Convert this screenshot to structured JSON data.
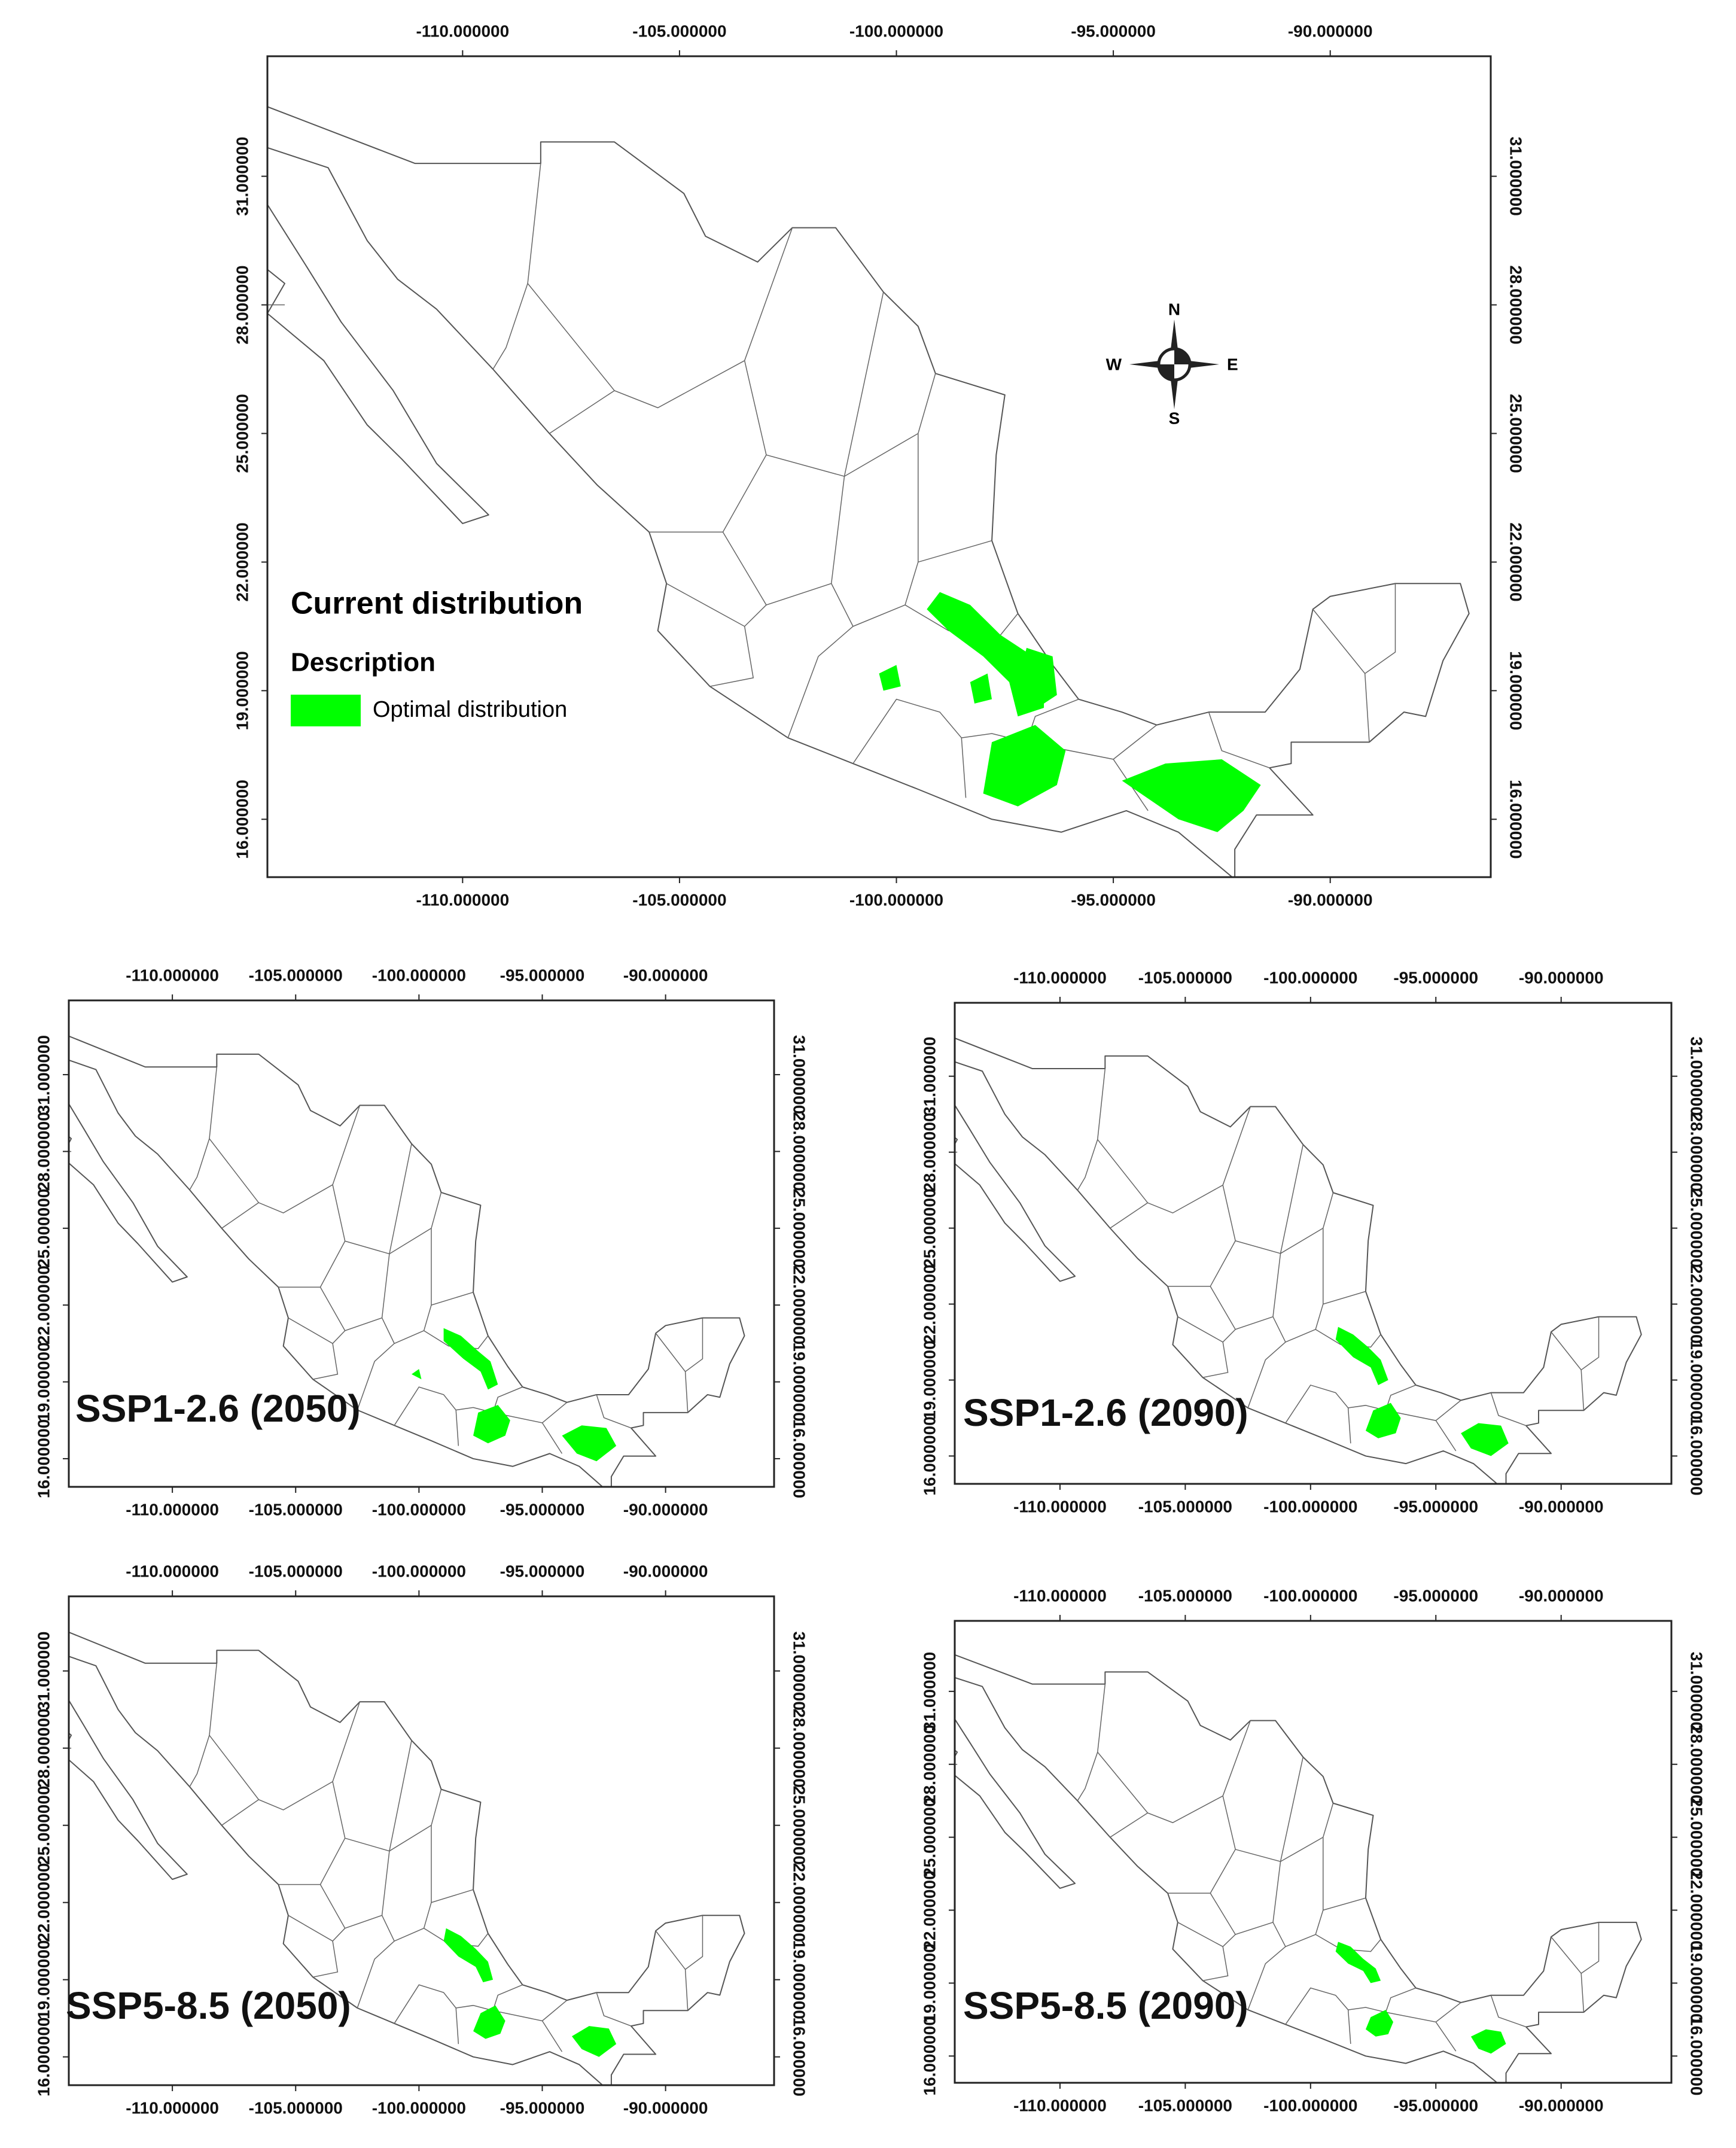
{
  "maps": [
    {
      "title": "Current distribution",
      "legend": {
        "title": "Description",
        "items": [
          {
            "label": "Optimal distribution",
            "color": "#00ff00"
          }
        ]
      },
      "compass": {
        "north": "N",
        "east": "E",
        "south": "S",
        "west": "W"
      },
      "xlim": [
        -114.5,
        -86.3
      ],
      "ylim": [
        14.65,
        33.8
      ],
      "xticks": [
        {
          "value": -110,
          "label": "-110.000000"
        },
        {
          "value": -105,
          "label": "-105.000000"
        },
        {
          "value": -100,
          "label": "-100.000000"
        },
        {
          "value": -95,
          "label": "-95.000000"
        },
        {
          "value": -90,
          "label": "-90.000000"
        }
      ],
      "yticks": [
        {
          "value": 16,
          "label": "16.000000"
        },
        {
          "value": 19,
          "label": "19.000000"
        },
        {
          "value": 22,
          "label": "22.000000"
        },
        {
          "value": 25,
          "label": "25.000000"
        },
        {
          "value": 28,
          "label": "28.000000"
        },
        {
          "value": 31,
          "label": "31.000000"
        }
      ]
    },
    {
      "title": "SSP1-2.6 (2050)",
      "xlim": [
        -114.2,
        -85.6
      ],
      "ylim": [
        14.9,
        33.9
      ],
      "xticks": [
        {
          "value": -110,
          "label": "-110.000000"
        },
        {
          "value": -105,
          "label": "-105.000000"
        },
        {
          "value": -100,
          "label": "-100.000000"
        },
        {
          "value": -95,
          "label": "-95.000000"
        },
        {
          "value": -90,
          "label": "-90.000000"
        }
      ],
      "yticks": [
        {
          "value": 16,
          "label": "16.000000"
        },
        {
          "value": 19,
          "label": "19.000000"
        },
        {
          "value": 22,
          "label": "22.000000"
        },
        {
          "value": 25,
          "label": "25.000000"
        },
        {
          "value": 28,
          "label": "28.000000"
        },
        {
          "value": 31,
          "label": "31.000000"
        }
      ]
    },
    {
      "title": "SSP1-2.6 (2090)",
      "xlim": [
        -114.2,
        -85.6
      ],
      "ylim": [
        14.9,
        33.9
      ],
      "xticks": [
        {
          "value": -110,
          "label": "-110.000000"
        },
        {
          "value": -105,
          "label": "-105.000000"
        },
        {
          "value": -100,
          "label": "-100.000000"
        },
        {
          "value": -95,
          "label": "-95.000000"
        },
        {
          "value": -90,
          "label": "-90.000000"
        }
      ],
      "yticks": [
        {
          "value": 16,
          "label": "16.000000"
        },
        {
          "value": 19,
          "label": "19.000000"
        },
        {
          "value": 22,
          "label": "22.000000"
        },
        {
          "value": 25,
          "label": "25.000000"
        },
        {
          "value": 28,
          "label": "28.000000"
        },
        {
          "value": 31,
          "label": "31.000000"
        }
      ]
    },
    {
      "title": "SSP5-8.5 (2050)",
      "xlim": [
        -114.2,
        -85.6
      ],
      "ylim": [
        14.9,
        33.9
      ],
      "xticks": [
        {
          "value": -110,
          "label": "-110.000000"
        },
        {
          "value": -105,
          "label": "-105.000000"
        },
        {
          "value": -100,
          "label": "-100.000000"
        },
        {
          "value": -95,
          "label": "-95.000000"
        },
        {
          "value": -90,
          "label": "-90.000000"
        }
      ],
      "yticks": [
        {
          "value": 16,
          "label": "16.000000"
        },
        {
          "value": 19,
          "label": "19.000000"
        },
        {
          "value": 22,
          "label": "22.000000"
        },
        {
          "value": 25,
          "label": "25.000000"
        },
        {
          "value": 28,
          "label": "28.000000"
        },
        {
          "value": 31,
          "label": "31.000000"
        }
      ]
    },
    {
      "title": "SSP5-8.5 (2090)",
      "xlim": [
        -114.2,
        -85.6
      ],
      "ylim": [
        14.9,
        33.9
      ],
      "xticks": [
        {
          "value": -110,
          "label": "-110.000000"
        },
        {
          "value": -105,
          "label": "-105.000000"
        },
        {
          "value": -100,
          "label": "-100.000000"
        },
        {
          "value": -95,
          "label": "-95.000000"
        },
        {
          "value": -90,
          "label": "-90.000000"
        }
      ],
      "yticks": [
        {
          "value": 16,
          "label": "16.000000"
        },
        {
          "value": 19,
          "label": "19.000000"
        },
        {
          "value": 22,
          "label": "22.000000"
        },
        {
          "value": 25,
          "label": "25.000000"
        },
        {
          "value": 28,
          "label": "28.000000"
        },
        {
          "value": 31,
          "label": "31.000000"
        }
      ]
    }
  ]
}
